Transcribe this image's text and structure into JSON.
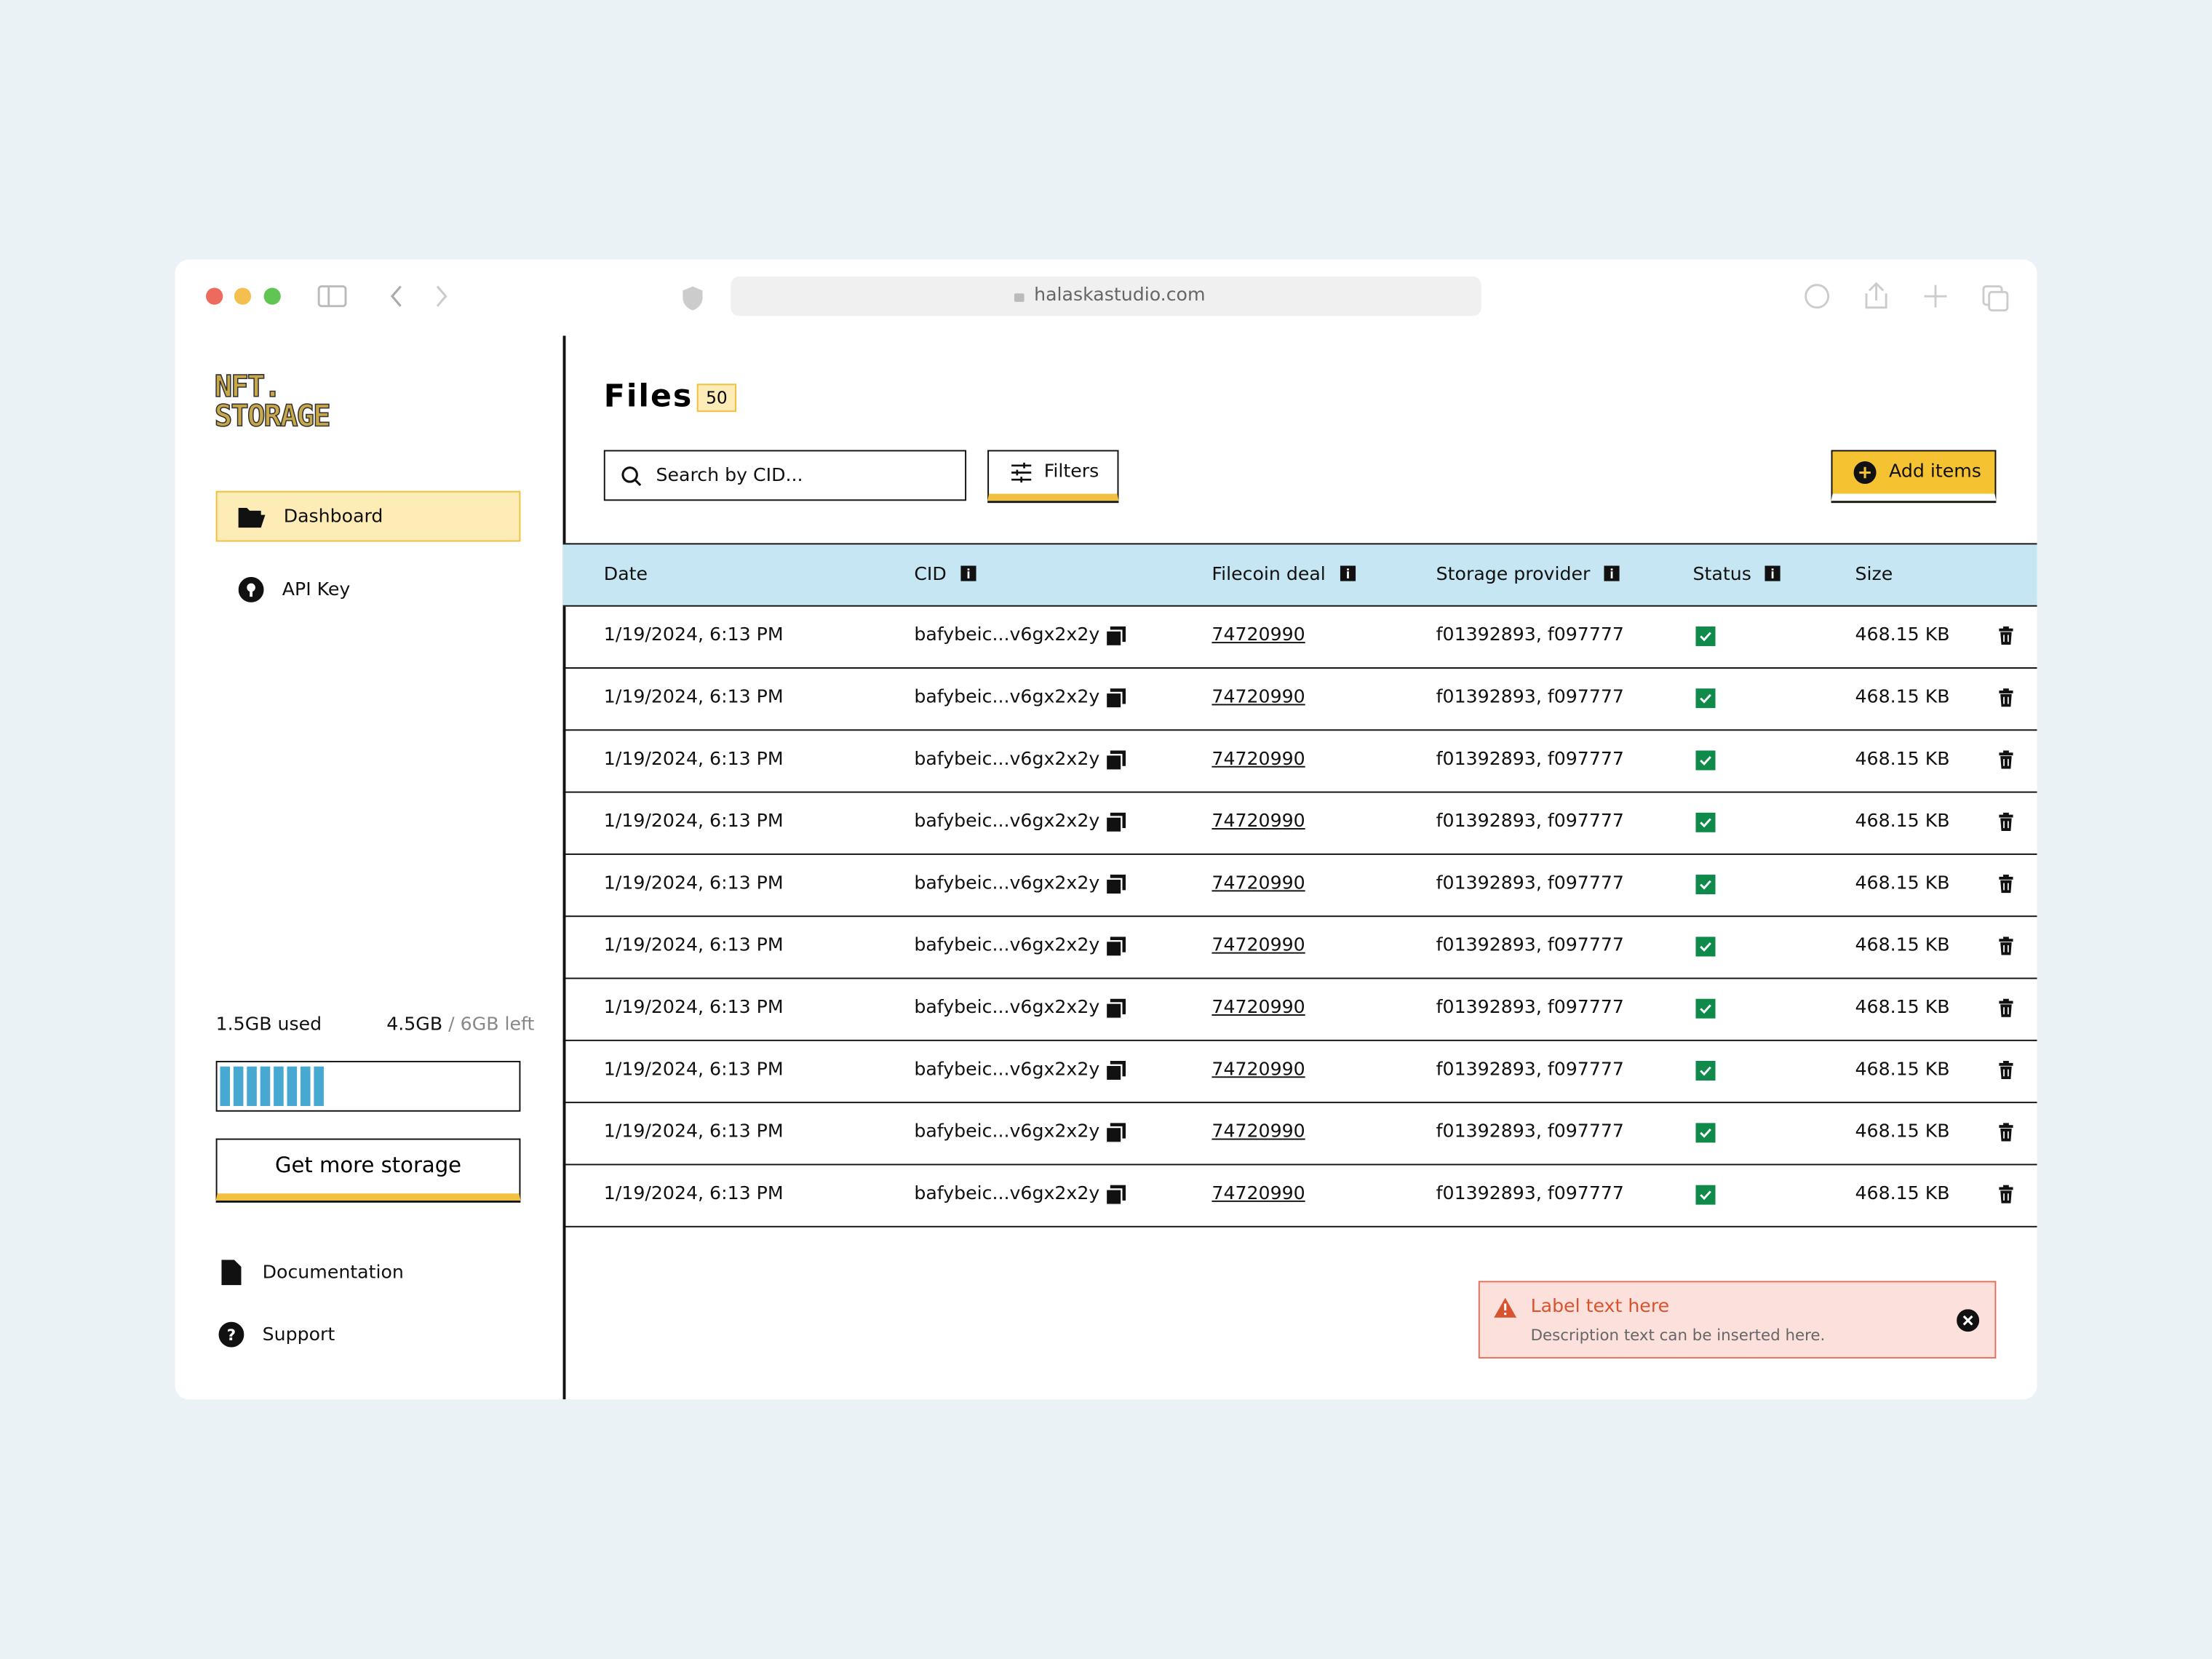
{
  "browser": {
    "url": "halaskastudio.com"
  },
  "sidebar": {
    "logo": [
      "NFT.",
      "STORAGE"
    ],
    "nav": [
      "Dashboard",
      "API Key"
    ],
    "storage": {
      "used": "1.5GB used",
      "left": "4.5GB",
      "total": "/ 6GB left",
      "button": "Get more storage"
    },
    "links": [
      "Documentation",
      "Support"
    ]
  },
  "main": {
    "title": "Files",
    "count": "50",
    "search": "Search by CID...",
    "filters": "Filters",
    "add": "Add items"
  },
  "table": {
    "columns": [
      "Date",
      "CID",
      "Filecoin deal",
      "Storage provider",
      "Status",
      "Size"
    ],
    "rows": [
      [
        "1/19/2024, 6:13 PM",
        "bafybeic...v6gx2x2y",
        "74720990",
        "f01392893, f097777",
        "468.15 KB"
      ],
      [
        "1/19/2024, 6:13 PM",
        "bafybeic...v6gx2x2y",
        "74720990",
        "f01392893, f097777",
        "468.15 KB"
      ],
      [
        "1/19/2024, 6:13 PM",
        "bafybeic...v6gx2x2y",
        "74720990",
        "f01392893, f097777",
        "468.15 KB"
      ],
      [
        "1/19/2024, 6:13 PM",
        "bafybeic...v6gx2x2y",
        "74720990",
        "f01392893, f097777",
        "468.15 KB"
      ],
      [
        "1/19/2024, 6:13 PM",
        "bafybeic...v6gx2x2y",
        "74720990",
        "f01392893, f097777",
        "468.15 KB"
      ],
      [
        "1/19/2024, 6:13 PM",
        "bafybeic...v6gx2x2y",
        "74720990",
        "f01392893, f097777",
        "468.15 KB"
      ],
      [
        "1/19/2024, 6:13 PM",
        "bafybeic...v6gx2x2y",
        "74720990",
        "f01392893, f097777",
        "468.15 KB"
      ],
      [
        "1/19/2024, 6:13 PM",
        "bafybeic...v6gx2x2y",
        "74720990",
        "f01392893, f097777",
        "468.15 KB"
      ],
      [
        "1/19/2024, 6:13 PM",
        "bafybeic...v6gx2x2y",
        "74720990",
        "f01392893, f097777",
        "468.15 KB"
      ],
      [
        "1/19/2024, 6:13 PM",
        "bafybeic...v6gx2x2y",
        "74720990",
        "f01392893, f097777",
        "468.15 KB"
      ]
    ]
  },
  "toast": {
    "label": "Label text here",
    "description": "Description text can be inserted here."
  }
}
